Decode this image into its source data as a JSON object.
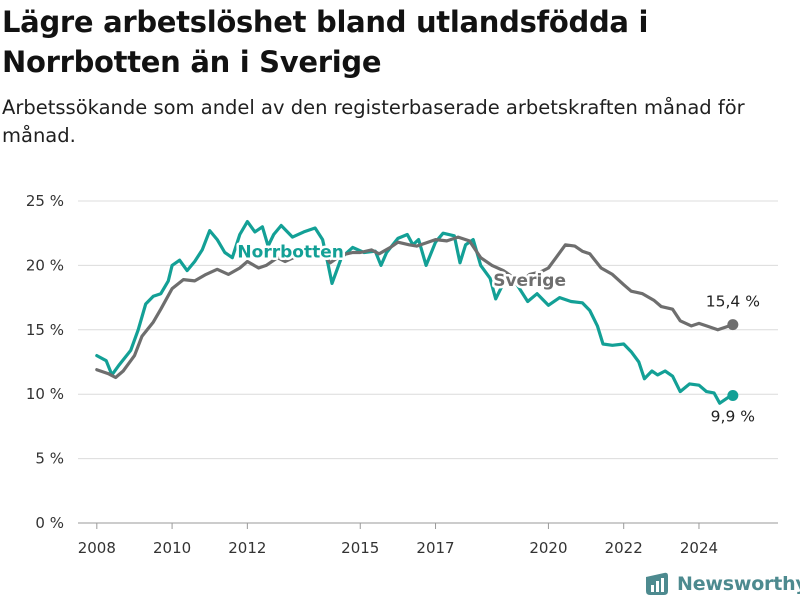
{
  "title": "Lägre arbetslöshet bland utlandsfödda i Norrbotten än i Sverige",
  "subtitle": "Arbetssökande som andel av den registerbaserade arbetskraften månad för månad.",
  "brand": {
    "name": "Newsworthy",
    "icon": "newsworthy-logo-icon"
  },
  "colors": {
    "norrbotten": "#13a096",
    "sverige": "#6e6e6e",
    "grid": "#dcdcdc",
    "brand": "#4d8a8f"
  },
  "chart_data": {
    "type": "line",
    "xlabel": "",
    "ylabel": "",
    "ylim": [
      0,
      25
    ],
    "y_ticks": [
      0,
      5,
      10,
      15,
      20,
      25
    ],
    "y_tick_labels": [
      "0 %",
      "5 %",
      "10 %",
      "15 %",
      "20 %",
      "25 %"
    ],
    "x_ticks": [
      2008,
      2010,
      2012,
      2015,
      2017,
      2020,
      2022,
      2024
    ],
    "x_tick_labels": [
      "2008",
      "2010",
      "2012",
      "2015",
      "2017",
      "2020",
      "2022",
      "2024"
    ],
    "xlim": [
      2007.5,
      2026.1
    ],
    "grid": true,
    "legend": "direct labels",
    "series": [
      {
        "name": "Norrbotten",
        "label": "Norrbotten",
        "color": "#13a096",
        "end_label": "9,9 %",
        "points": [
          [
            2008.0,
            13.0
          ],
          [
            2008.25,
            12.6
          ],
          [
            2008.4,
            11.5
          ],
          [
            2008.6,
            12.3
          ],
          [
            2008.9,
            13.4
          ],
          [
            2009.1,
            15.0
          ],
          [
            2009.3,
            17.0
          ],
          [
            2009.5,
            17.6
          ],
          [
            2009.7,
            17.8
          ],
          [
            2009.9,
            18.8
          ],
          [
            2010.0,
            20.0
          ],
          [
            2010.2,
            20.4
          ],
          [
            2010.4,
            19.6
          ],
          [
            2010.6,
            20.3
          ],
          [
            2010.8,
            21.2
          ],
          [
            2011.0,
            22.7
          ],
          [
            2011.2,
            22.0
          ],
          [
            2011.4,
            21.0
          ],
          [
            2011.6,
            20.6
          ],
          [
            2011.8,
            22.4
          ],
          [
            2012.0,
            23.4
          ],
          [
            2012.2,
            22.6
          ],
          [
            2012.4,
            23.0
          ],
          [
            2012.55,
            21.5
          ],
          [
            2012.7,
            22.4
          ],
          [
            2012.9,
            23.1
          ],
          [
            2013.2,
            22.2
          ],
          [
            2013.5,
            22.6
          ],
          [
            2013.8,
            22.9
          ],
          [
            2014.0,
            22.0
          ],
          [
            2014.15,
            20.0
          ],
          [
            2014.25,
            18.6
          ],
          [
            2014.5,
            20.6
          ],
          [
            2014.8,
            21.4
          ],
          [
            2015.1,
            21.0
          ],
          [
            2015.4,
            21.1
          ],
          [
            2015.55,
            20.0
          ],
          [
            2015.7,
            21.0
          ],
          [
            2016.0,
            22.1
          ],
          [
            2016.25,
            22.4
          ],
          [
            2016.4,
            21.6
          ],
          [
            2016.55,
            22.0
          ],
          [
            2016.75,
            20.0
          ],
          [
            2017.0,
            21.8
          ],
          [
            2017.2,
            22.5
          ],
          [
            2017.5,
            22.3
          ],
          [
            2017.65,
            20.2
          ],
          [
            2017.8,
            21.6
          ],
          [
            2018.0,
            22.0
          ],
          [
            2018.2,
            20.0
          ],
          [
            2018.45,
            19.0
          ],
          [
            2018.6,
            17.4
          ],
          [
            2018.8,
            18.6
          ],
          [
            2019.1,
            18.8
          ],
          [
            2019.45,
            17.2
          ],
          [
            2019.7,
            17.8
          ],
          [
            2020.0,
            16.9
          ],
          [
            2020.3,
            17.5
          ],
          [
            2020.6,
            17.2
          ],
          [
            2020.9,
            17.1
          ],
          [
            2021.1,
            16.5
          ],
          [
            2021.3,
            15.3
          ],
          [
            2021.45,
            13.9
          ],
          [
            2021.7,
            13.8
          ],
          [
            2022.0,
            13.9
          ],
          [
            2022.2,
            13.3
          ],
          [
            2022.4,
            12.5
          ],
          [
            2022.55,
            11.2
          ],
          [
            2022.75,
            11.8
          ],
          [
            2022.9,
            11.5
          ],
          [
            2023.1,
            11.8
          ],
          [
            2023.3,
            11.4
          ],
          [
            2023.5,
            10.2
          ],
          [
            2023.75,
            10.8
          ],
          [
            2024.0,
            10.7
          ],
          [
            2024.2,
            10.2
          ],
          [
            2024.4,
            10.1
          ],
          [
            2024.55,
            9.3
          ],
          [
            2024.8,
            9.8
          ],
          [
            2024.9,
            9.9
          ]
        ]
      },
      {
        "name": "Sverige",
        "label": "Sverige",
        "color": "#6e6e6e",
        "end_label": "15,4 %",
        "points": [
          [
            2008.0,
            11.9
          ],
          [
            2008.3,
            11.6
          ],
          [
            2008.5,
            11.3
          ],
          [
            2008.7,
            11.8
          ],
          [
            2009.0,
            13.0
          ],
          [
            2009.2,
            14.5
          ],
          [
            2009.5,
            15.6
          ],
          [
            2009.7,
            16.6
          ],
          [
            2010.0,
            18.2
          ],
          [
            2010.3,
            18.9
          ],
          [
            2010.6,
            18.8
          ],
          [
            2010.9,
            19.3
          ],
          [
            2011.2,
            19.7
          ],
          [
            2011.5,
            19.3
          ],
          [
            2011.8,
            19.8
          ],
          [
            2012.0,
            20.3
          ],
          [
            2012.3,
            19.8
          ],
          [
            2012.5,
            20.0
          ],
          [
            2012.8,
            20.6
          ],
          [
            2013.0,
            20.3
          ],
          [
            2013.3,
            20.7
          ],
          [
            2013.6,
            20.9
          ],
          [
            2014.0,
            21.0
          ],
          [
            2014.2,
            20.2
          ],
          [
            2014.5,
            20.8
          ],
          [
            2014.8,
            21.0
          ],
          [
            2015.0,
            21.0
          ],
          [
            2015.3,
            21.2
          ],
          [
            2015.5,
            20.9
          ],
          [
            2015.8,
            21.4
          ],
          [
            2016.0,
            21.8
          ],
          [
            2016.3,
            21.6
          ],
          [
            2016.5,
            21.5
          ],
          [
            2016.8,
            21.8
          ],
          [
            2017.0,
            22.0
          ],
          [
            2017.3,
            21.9
          ],
          [
            2017.6,
            22.2
          ],
          [
            2017.9,
            21.9
          ],
          [
            2018.2,
            20.6
          ],
          [
            2018.5,
            20.0
          ],
          [
            2018.8,
            19.6
          ],
          [
            2019.0,
            19.2
          ],
          [
            2019.3,
            18.8
          ],
          [
            2019.5,
            19.3
          ],
          [
            2019.8,
            19.5
          ],
          [
            2020.0,
            19.8
          ],
          [
            2020.2,
            20.6
          ],
          [
            2020.45,
            21.6
          ],
          [
            2020.7,
            21.5
          ],
          [
            2020.9,
            21.1
          ],
          [
            2021.1,
            20.9
          ],
          [
            2021.4,
            19.8
          ],
          [
            2021.7,
            19.3
          ],
          [
            2022.0,
            18.5
          ],
          [
            2022.2,
            18.0
          ],
          [
            2022.5,
            17.8
          ],
          [
            2022.8,
            17.3
          ],
          [
            2023.0,
            16.8
          ],
          [
            2023.3,
            16.6
          ],
          [
            2023.5,
            15.7
          ],
          [
            2023.8,
            15.3
          ],
          [
            2024.0,
            15.5
          ],
          [
            2024.2,
            15.3
          ],
          [
            2024.5,
            15.0
          ],
          [
            2024.7,
            15.2
          ],
          [
            2024.9,
            15.4
          ]
        ]
      }
    ]
  }
}
